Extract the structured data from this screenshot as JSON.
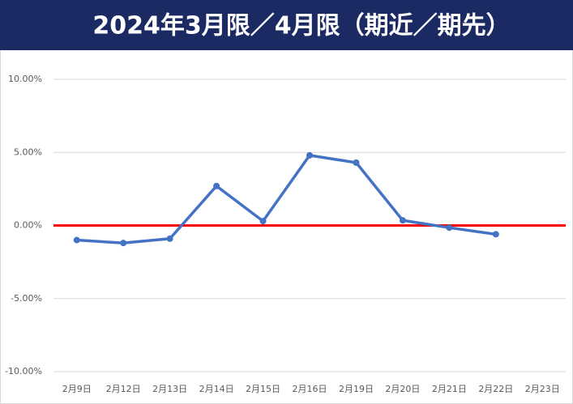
{
  "chart_data": {
    "type": "line",
    "title": "2024年3月限／4月限（期近／期先）",
    "categories": [
      "2月9日",
      "2月12日",
      "2月13日",
      "2月14日",
      "2月15日",
      "2月16日",
      "2月19日",
      "2月20日",
      "2月21日",
      "2月22日",
      "2月23日"
    ],
    "values": [
      -1.0,
      -1.2,
      -0.9,
      2.7,
      0.3,
      4.8,
      4.3,
      0.35,
      -0.15,
      -0.6,
      null
    ],
    "color": "#4472c4",
    "ylim": [
      -10,
      10
    ],
    "yticks": [
      {
        "value": -10,
        "label": "-10.00%"
      },
      {
        "value": -5,
        "label": "-5.00%"
      },
      {
        "value": 0,
        "label": "0.00%"
      },
      {
        "value": 5,
        "label": "5.00%"
      },
      {
        "value": 10,
        "label": "10.00%"
      }
    ],
    "grid": true,
    "zero_line_color": "#ff0000"
  }
}
